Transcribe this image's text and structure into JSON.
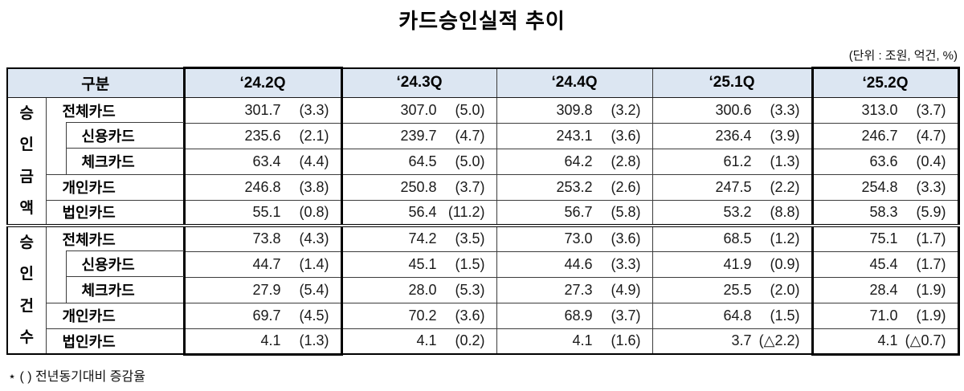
{
  "title": "카드승인실적 추이",
  "unit_note": "(단위 : 조원, 억건, %)",
  "footnote": "⋆ ( ) 전년동기대비 증감율",
  "colors": {
    "header_bg": "#dce6f2",
    "border": "#3c3c3c",
    "highlight_border": "#000000",
    "text": "#111111"
  },
  "table": {
    "corner_header": "구분",
    "quarter_headers": [
      "‘24.2Q",
      "‘24.3Q",
      "‘24.4Q",
      "‘25.1Q",
      "‘25.2Q"
    ],
    "highlighted_quarters": [
      "‘24.2Q",
      "‘25.2Q"
    ],
    "highlight_col_indexes": [
      0,
      4
    ],
    "groups": [
      {
        "name": "승인금액",
        "name_chars": [
          "승",
          "인",
          "금",
          "액"
        ],
        "rows": [
          {
            "label": "전체카드",
            "sub": false,
            "values": [
              [
                "301.7",
                "(3.3)"
              ],
              [
                "307.0",
                "(5.0)"
              ],
              [
                "309.8",
                "(3.2)"
              ],
              [
                "300.6",
                "(3.3)"
              ],
              [
                "313.0",
                "(3.7)"
              ]
            ]
          },
          {
            "label": "신용카드",
            "sub": true,
            "values": [
              [
                "235.6",
                "(2.1)"
              ],
              [
                "239.7",
                "(4.7)"
              ],
              [
                "243.1",
                "(3.6)"
              ],
              [
                "236.4",
                "(3.9)"
              ],
              [
                "246.7",
                "(4.7)"
              ]
            ]
          },
          {
            "label": "체크카드",
            "sub": true,
            "values": [
              [
                "63.4",
                "(4.4)"
              ],
              [
                "64.5",
                "(5.0)"
              ],
              [
                "64.2",
                "(2.8)"
              ],
              [
                "61.2",
                "(1.3)"
              ],
              [
                "63.6",
                "(0.4)"
              ]
            ]
          },
          {
            "label": "개인카드",
            "sub": false,
            "values": [
              [
                "246.8",
                "(3.8)"
              ],
              [
                "250.8",
                "(3.7)"
              ],
              [
                "253.2",
                "(2.6)"
              ],
              [
                "247.5",
                "(2.2)"
              ],
              [
                "254.8",
                "(3.3)"
              ]
            ]
          },
          {
            "label": "법인카드",
            "sub": false,
            "values": [
              [
                "55.1",
                "(0.8)"
              ],
              [
                "56.4",
                "(11.2)"
              ],
              [
                "56.7",
                "(5.8)"
              ],
              [
                "53.2",
                "(8.8)"
              ],
              [
                "58.3",
                "(5.9)"
              ]
            ]
          }
        ]
      },
      {
        "name": "승인건수",
        "name_chars": [
          "승",
          "인",
          "건",
          "수"
        ],
        "rows": [
          {
            "label": "전체카드",
            "sub": false,
            "values": [
              [
                "73.8",
                "(4.3)"
              ],
              [
                "74.2",
                "(3.5)"
              ],
              [
                "73.0",
                "(3.6)"
              ],
              [
                "68.5",
                "(1.2)"
              ],
              [
                "75.1",
                "(1.7)"
              ]
            ]
          },
          {
            "label": "신용카드",
            "sub": true,
            "values": [
              [
                "44.7",
                "(1.4)"
              ],
              [
                "45.1",
                "(1.5)"
              ],
              [
                "44.6",
                "(3.3)"
              ],
              [
                "41.9",
                "(0.9)"
              ],
              [
                "45.4",
                "(1.7)"
              ]
            ]
          },
          {
            "label": "체크카드",
            "sub": true,
            "values": [
              [
                "27.9",
                "(5.4)"
              ],
              [
                "28.0",
                "(5.3)"
              ],
              [
                "27.3",
                "(4.9)"
              ],
              [
                "25.5",
                "(2.0)"
              ],
              [
                "28.4",
                "(1.9)"
              ]
            ]
          },
          {
            "label": "개인카드",
            "sub": false,
            "values": [
              [
                "69.7",
                "(4.5)"
              ],
              [
                "70.2",
                "(3.6)"
              ],
              [
                "68.9",
                "(3.7)"
              ],
              [
                "64.8",
                "(1.5)"
              ],
              [
                "71.0",
                "(1.9)"
              ]
            ]
          },
          {
            "label": "법인카드",
            "sub": false,
            "values": [
              [
                "4.1",
                "(1.3)"
              ],
              [
                "4.1",
                "(0.2)"
              ],
              [
                "4.1",
                "(1.6)"
              ],
              [
                "3.7",
                "(△2.2)"
              ],
              [
                "4.1",
                "(△0.7)"
              ]
            ]
          }
        ]
      }
    ]
  }
}
